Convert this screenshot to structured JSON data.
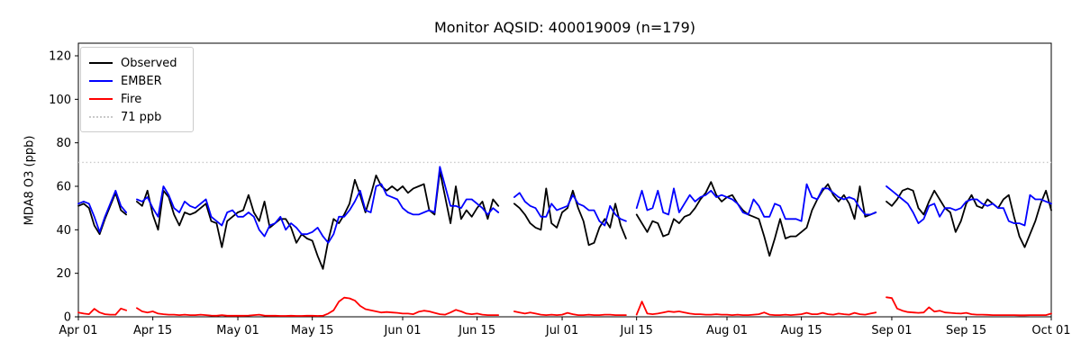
{
  "figure": {
    "title": "Monitor AQSID: 400019009 (n=179)",
    "ylabel": "MDA8 O3 (ppb)"
  },
  "legend": {
    "items": [
      {
        "label": "Observed",
        "color": "#000000",
        "style": "solid"
      },
      {
        "label": "EMBER",
        "color": "#0000ff",
        "style": "solid"
      },
      {
        "label": "Fire",
        "color": "#ff0000",
        "style": "solid"
      },
      {
        "label": "71 ppb",
        "color": "#c9c9c9",
        "style": "dotted"
      }
    ]
  },
  "chart_data": {
    "type": "line",
    "title": "Monitor AQSID: 400019009 (n=179)",
    "xlabel": "",
    "ylabel": "MDA8 O3 (ppb)",
    "ylim": [
      0,
      126
    ],
    "grid": false,
    "legend_position": "upper left",
    "n_observed": 179,
    "x_unit": "day index, 0 = Apr 01, 183 = Oct 01",
    "x_ticks": [
      {
        "label": "Apr 01",
        "day": 0
      },
      {
        "label": "Apr 15",
        "day": 14
      },
      {
        "label": "May 01",
        "day": 30
      },
      {
        "label": "May 15",
        "day": 44
      },
      {
        "label": "Jun 01",
        "day": 61
      },
      {
        "label": "Jun 15",
        "day": 75
      },
      {
        "label": "Jul 01",
        "day": 91
      },
      {
        "label": "Jul 15",
        "day": 105
      },
      {
        "label": "Aug 01",
        "day": 122
      },
      {
        "label": "Aug 15",
        "day": 136
      },
      {
        "label": "Sep 01",
        "day": 153
      },
      {
        "label": "Sep 15",
        "day": 167
      },
      {
        "label": "Oct 01",
        "day": 183
      }
    ],
    "y_ticks": [
      0,
      20,
      40,
      60,
      80,
      100,
      120
    ],
    "reference_line": {
      "label": "71 ppb",
      "value": 71,
      "color": "#c9c9c9",
      "style": "dotted"
    },
    "series": [
      {
        "name": "Observed",
        "color": "#000000",
        "values": [
          51,
          52,
          50,
          42,
          38,
          45,
          51,
          57,
          49,
          47,
          null,
          53,
          51,
          58,
          47,
          40,
          58,
          55,
          47,
          42,
          48,
          47,
          48,
          50,
          52,
          44,
          43,
          32,
          44,
          46,
          48,
          49,
          56,
          48,
          44,
          53,
          41,
          43,
          45,
          45,
          41,
          34,
          38,
          36,
          35,
          28,
          22,
          35,
          45,
          43,
          47,
          52,
          63,
          56,
          48,
          56,
          65,
          60,
          58,
          60,
          58,
          60,
          57,
          59,
          60,
          61,
          49,
          47,
          67,
          55,
          43,
          60,
          45,
          49,
          46,
          50,
          53,
          45,
          54,
          51,
          null,
          null,
          52,
          50,
          47,
          43,
          41,
          40,
          59,
          43,
          41,
          48,
          50,
          58,
          50,
          44,
          33,
          34,
          41,
          45,
          41,
          52,
          42,
          36,
          null,
          47,
          43,
          39,
          44,
          43,
          37,
          38,
          45,
          43,
          46,
          47,
          50,
          54,
          57,
          62,
          56,
          53,
          55,
          56,
          52,
          49,
          47,
          46,
          45,
          37,
          28,
          36,
          45,
          36,
          37,
          37,
          39,
          41,
          49,
          54,
          58,
          61,
          56,
          53,
          56,
          52,
          45,
          60,
          46,
          47,
          48,
          null,
          53,
          51,
          54,
          58,
          59,
          58,
          50,
          47,
          53,
          58,
          54,
          50,
          48,
          39,
          44,
          52,
          56,
          51,
          50,
          54,
          52,
          50,
          54,
          56,
          46,
          37,
          32,
          38,
          44,
          52,
          58,
          49
        ]
      },
      {
        "name": "EMBER",
        "color": "#0000ff",
        "values": [
          52,
          53,
          52,
          46,
          39,
          46,
          52,
          58,
          51,
          48,
          null,
          54,
          53,
          55,
          50,
          46,
          60,
          56,
          50,
          48,
          53,
          51,
          50,
          52,
          54,
          46,
          44,
          42,
          48,
          49,
          46,
          46,
          48,
          46,
          40,
          37,
          42,
          43,
          46,
          40,
          43,
          41,
          38,
          38,
          39,
          41,
          37,
          34,
          38,
          46,
          46,
          49,
          53,
          58,
          49,
          48,
          60,
          61,
          56,
          55,
          54,
          50,
          48,
          47,
          47,
          48,
          49,
          48,
          69,
          60,
          51,
          51,
          50,
          54,
          54,
          52,
          50,
          47,
          50,
          48,
          null,
          null,
          55,
          57,
          53,
          51,
          50,
          46,
          46,
          52,
          49,
          50,
          51,
          56,
          52,
          51,
          49,
          49,
          44,
          42,
          51,
          47,
          45,
          44,
          null,
          50,
          58,
          49,
          50,
          58,
          48,
          47,
          59,
          48,
          52,
          56,
          53,
          55,
          56,
          58,
          55,
          56,
          55,
          54,
          52,
          48,
          47,
          54,
          51,
          46,
          46,
          52,
          51,
          45,
          45,
          45,
          44,
          61,
          55,
          54,
          59,
          59,
          57,
          55,
          54,
          55,
          54,
          50,
          47,
          47,
          48,
          null,
          60,
          58,
          56,
          54,
          52,
          48,
          43,
          45,
          51,
          52,
          46,
          50,
          50,
          49,
          50,
          53,
          54,
          54,
          52,
          51,
          52,
          50,
          50,
          44,
          43,
          43,
          42,
          56,
          54,
          54,
          53,
          52
        ]
      },
      {
        "name": "Fire",
        "color": "#ff0000",
        "values": [
          2,
          1.5,
          1.2,
          3.7,
          2,
          1.2,
          1,
          1,
          3.8,
          3,
          null,
          4,
          2.5,
          2,
          2.5,
          1.5,
          1.2,
          1,
          1,
          0.8,
          1,
          0.8,
          0.8,
          1,
          0.8,
          0.6,
          0.5,
          0.8,
          0.5,
          0.5,
          0.5,
          0.5,
          0.6,
          0.8,
          1,
          0.6,
          0.5,
          0.5,
          0.4,
          0.4,
          0.5,
          0.4,
          0.4,
          0.5,
          0.5,
          0.4,
          0.5,
          1.5,
          3,
          7,
          8.8,
          8.5,
          7.5,
          5,
          3.5,
          3,
          2.5,
          2,
          2.2,
          2,
          1.8,
          1.5,
          1.5,
          1.2,
          2.3,
          2.8,
          2.5,
          1.8,
          1.2,
          1,
          2,
          3.2,
          2.5,
          1.5,
          1.2,
          1.5,
          1,
          0.8,
          0.8,
          0.8,
          null,
          null,
          2.5,
          2,
          1.5,
          2,
          1.5,
          1,
          0.8,
          1,
          0.8,
          1,
          1.8,
          1.2,
          0.8,
          0.8,
          1,
          0.8,
          0.8,
          1,
          1,
          0.8,
          0.8,
          0.8,
          null,
          1,
          7,
          1.5,
          1.2,
          1.5,
          2,
          2.5,
          2.2,
          2.5,
          2,
          1.5,
          1.2,
          1.2,
          1,
          1,
          1.2,
          1,
          1,
          0.8,
          1,
          0.8,
          0.8,
          1,
          1.2,
          2,
          1,
          0.8,
          0.8,
          1,
          0.8,
          1,
          1.2,
          1.8,
          1.2,
          1.2,
          1.8,
          1.2,
          1,
          1.5,
          1.2,
          1,
          1.8,
          1.2,
          1,
          1.5,
          2,
          null,
          9,
          8.6,
          3.8,
          2.8,
          2.2,
          2,
          1.8,
          2,
          4.4,
          2.4,
          2.8,
          2,
          1.8,
          1.6,
          1.5,
          1.8,
          1.2,
          1,
          1,
          0.9,
          0.8,
          0.8,
          0.8,
          0.8,
          0.8,
          0.7,
          0.7,
          0.8,
          0.8,
          0.8,
          0.8,
          1.5
        ]
      }
    ]
  }
}
